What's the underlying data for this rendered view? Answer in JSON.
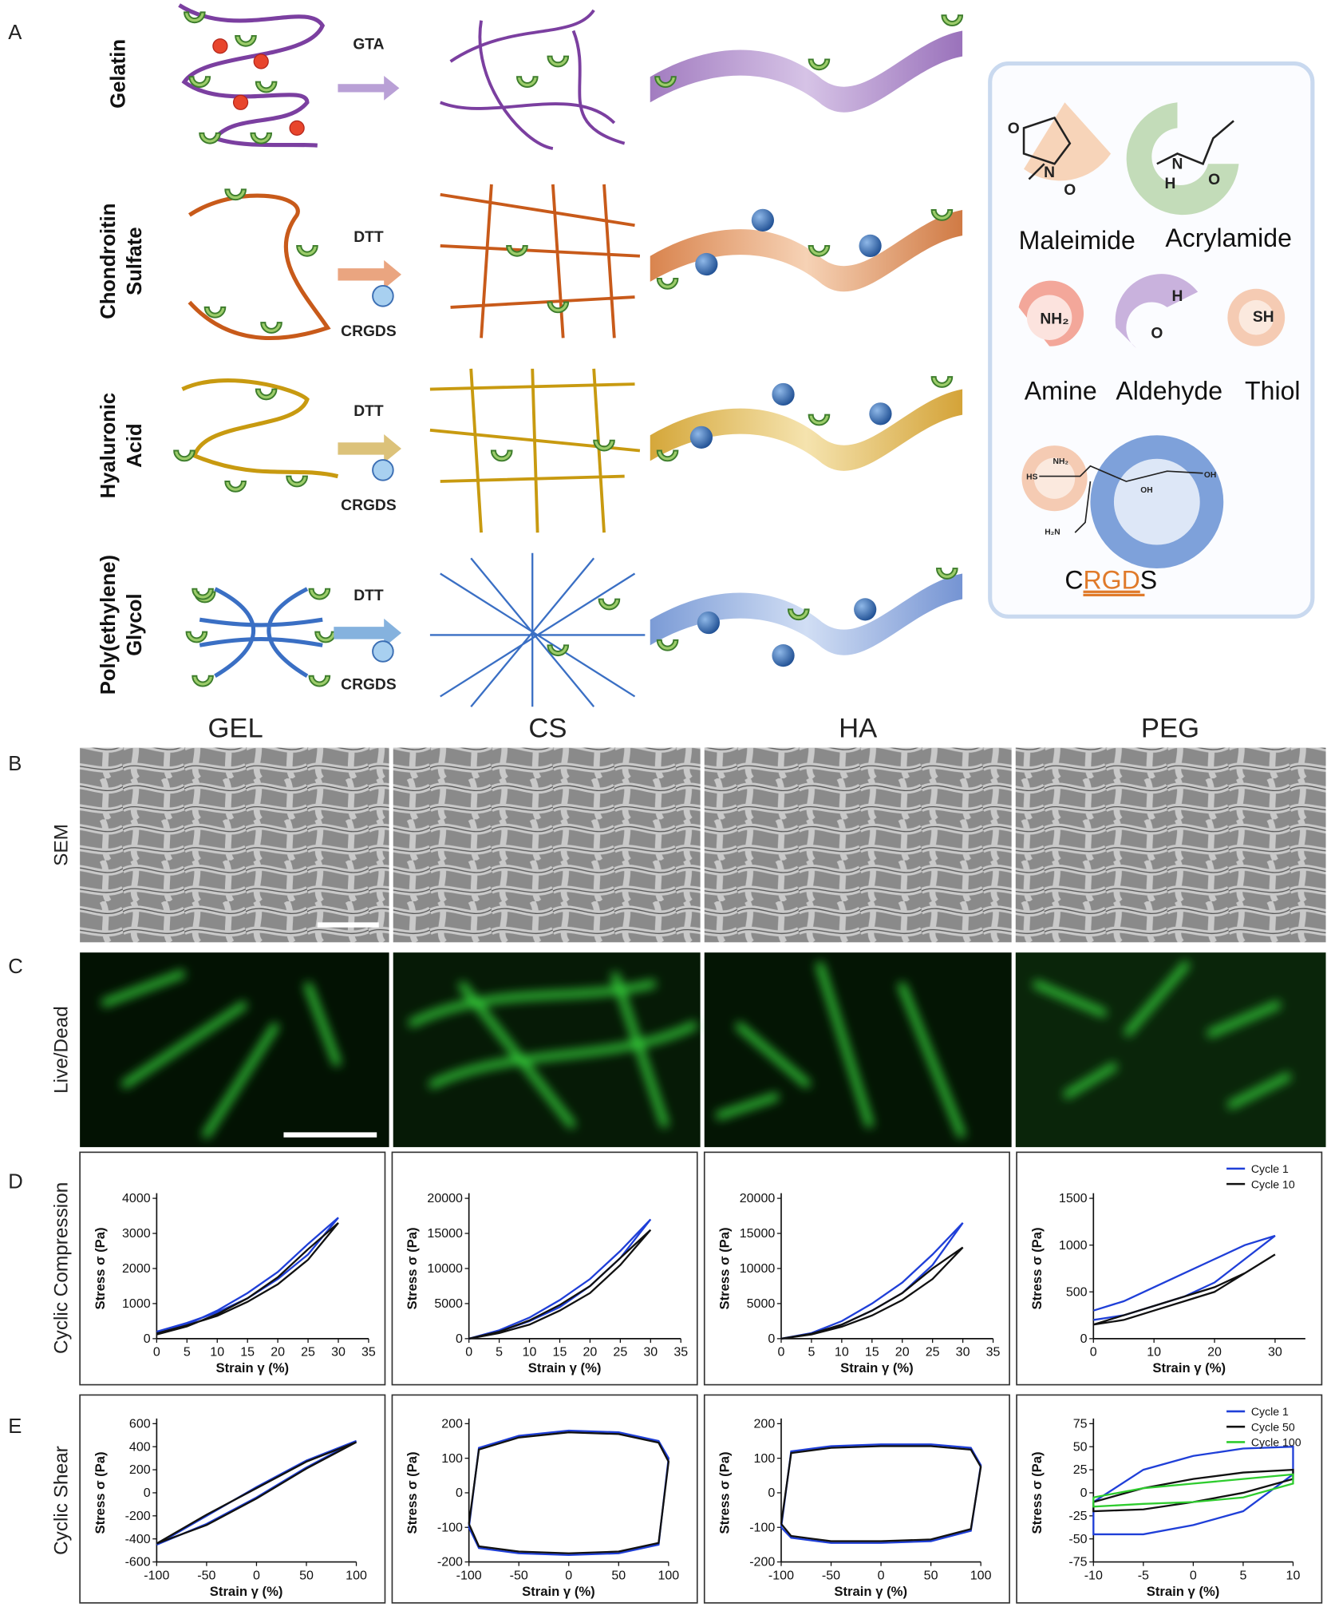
{
  "panel_labels": {
    "a": "A",
    "b": "B",
    "c": "C",
    "d": "D",
    "e": "E"
  },
  "panel_a": {
    "rows": [
      [
        "Gelatin"
      ],
      [
        "Chondroitin",
        "Sulfate"
      ],
      [
        "Hyaluronic",
        "Acid"
      ],
      [
        "Poly(ethylene)",
        "Glycol"
      ]
    ],
    "crosslinkers": [
      "GTA",
      "DTT",
      "DTT",
      "DTT"
    ],
    "peptide_labels": [
      "CRGDS",
      "CRGDS",
      "CRGDS"
    ],
    "legend": {
      "groups": [
        "Maleimide",
        "Acrylamide",
        "Amine",
        "Aldehyde",
        "Thiol"
      ],
      "maleimide_atoms": [
        "O",
        "N",
        "O"
      ],
      "acrylamide_atoms": [
        "N",
        "H",
        "O"
      ],
      "amine_atom": "NH₂",
      "aldehyde_atoms": [
        "H",
        "O"
      ],
      "thiol_atom": "SH",
      "crgds_atoms": [
        "HS",
        "NH₂",
        "OH",
        "OH",
        "H₂N"
      ],
      "peptide": {
        "prefix": "C",
        "motif": "RGD",
        "suffix": "S"
      }
    }
  },
  "columns": [
    "GEL",
    "CS",
    "HA",
    "PEG"
  ],
  "row_titles": {
    "sem": "SEM",
    "live_dead": "Live/Dead",
    "compression": "Cyclic Compression",
    "shear": "Cyclic Shear"
  },
  "chart_data": [
    {
      "type": "line",
      "xlabel": "Strain γ (%)",
      "ylabel": "Stress σ (Pa)",
      "x": [
        0,
        5,
        10,
        15,
        20,
        25,
        30,
        25,
        20,
        15,
        10,
        5,
        0
      ],
      "xlim": [
        0,
        35
      ],
      "xticks": [
        0,
        5,
        10,
        15,
        20,
        25,
        30,
        35
      ],
      "ylim": [
        0,
        4000
      ],
      "yticks": [
        0,
        1000,
        2000,
        3000,
        4000
      ],
      "series": [
        {
          "color": "#1f3fd8",
          "values": [
            200,
            450,
            750,
            1150,
            1700,
            2400,
            3450,
            2700,
            1900,
            1300,
            800,
            400,
            150
          ]
        },
        {
          "color": "#111111",
          "values": [
            150,
            380,
            650,
            1050,
            1550,
            2250,
            3300,
            2550,
            1750,
            1150,
            700,
            350,
            120
          ]
        }
      ]
    },
    {
      "type": "line",
      "xlabel": "Strain γ (%)",
      "ylabel": "Stress σ (Pa)",
      "x": [
        0,
        5,
        10,
        15,
        20,
        25,
        30,
        25,
        20,
        15,
        10,
        5,
        0
      ],
      "xlim": [
        0,
        35
      ],
      "xticks": [
        0,
        5,
        10,
        15,
        20,
        25,
        30,
        35
      ],
      "ylim": [
        0,
        20000
      ],
      "yticks": [
        0,
        5000,
        10000,
        15000,
        20000
      ],
      "series": [
        {
          "color": "#1f3fd8",
          "values": [
            0,
            1000,
            2500,
            4500,
            7500,
            11500,
            17000,
            12500,
            8500,
            5500,
            3000,
            1200,
            0
          ]
        },
        {
          "color": "#111111",
          "values": [
            0,
            800,
            2000,
            4000,
            6500,
            10500,
            15500,
            11500,
            7500,
            4800,
            2600,
            1000,
            0
          ]
        }
      ]
    },
    {
      "type": "line",
      "xlabel": "Strain γ (%)",
      "ylabel": "Stress σ (Pa)",
      "x": [
        0,
        5,
        10,
        15,
        20,
        25,
        30,
        25,
        20,
        15,
        10,
        5,
        0
      ],
      "xlim": [
        0,
        35
      ],
      "xticks": [
        0,
        5,
        10,
        15,
        20,
        25,
        30,
        35
      ],
      "ylim": [
        0,
        20000
      ],
      "yticks": [
        0,
        5000,
        10000,
        15000,
        20000
      ],
      "series": [
        {
          "color": "#1f3fd8",
          "values": [
            0,
            700,
            2000,
            4000,
            6500,
            10500,
            16500,
            12000,
            8000,
            5000,
            2500,
            800,
            0
          ]
        },
        {
          "color": "#111111",
          "values": [
            0,
            600,
            1700,
            3300,
            5500,
            8500,
            13000,
            10000,
            6500,
            4000,
            2000,
            700,
            0
          ]
        }
      ]
    },
    {
      "type": "line",
      "xlabel": "Strain γ (%)",
      "ylabel": "Stress σ (Pa)",
      "x": [
        0,
        5,
        10,
        15,
        20,
        25,
        30,
        25,
        20,
        15,
        10,
        5,
        0
      ],
      "xlim": [
        0,
        35
      ],
      "xticks": [
        0,
        10,
        20,
        30
      ],
      "ylim": [
        0,
        1500
      ],
      "yticks": [
        0,
        500,
        1000,
        1500
      ],
      "series": [
        {
          "name": "Cycle 1",
          "color": "#1f3fd8",
          "values": [
            300,
            400,
            550,
            700,
            850,
            1000,
            1100,
            850,
            600,
            450,
            350,
            250,
            200
          ]
        },
        {
          "name": "Cycle 10",
          "color": "#111111",
          "values": [
            150,
            250,
            350,
            450,
            550,
            700,
            900,
            700,
            500,
            400,
            300,
            200,
            150
          ]
        }
      ]
    },
    {
      "type": "line",
      "xlabel": "Strain γ (%)",
      "ylabel": "Stress σ (Pa)",
      "x": [
        -100,
        -50,
        0,
        50,
        100,
        50,
        0,
        -50,
        -100
      ],
      "xlim": [
        -100,
        100
      ],
      "xticks": [
        -100,
        -50,
        0,
        50,
        100
      ],
      "ylim": [
        -600,
        600
      ],
      "yticks": [
        -600,
        -400,
        -200,
        0,
        200,
        400,
        600
      ],
      "series": [
        {
          "color": "#1f3fd8",
          "values": [
            -450,
            -200,
            50,
            280,
            450,
            220,
            -40,
            -270,
            -450
          ]
        },
        {
          "color": "#111111",
          "values": [
            -440,
            -190,
            40,
            270,
            440,
            210,
            -50,
            -280,
            -440
          ]
        }
      ]
    },
    {
      "type": "line",
      "xlabel": "Strain γ (%)",
      "ylabel": "Stress σ (Pa)",
      "x": [
        -100,
        -90,
        -50,
        0,
        50,
        90,
        100,
        90,
        50,
        0,
        -50,
        -90,
        -100
      ],
      "xlim": [
        -100,
        100
      ],
      "xticks": [
        -100,
        -50,
        0,
        50,
        100
      ],
      "ylim": [
        -200,
        200
      ],
      "yticks": [
        -200,
        -100,
        0,
        100,
        200
      ],
      "series": [
        {
          "color": "#1f3fd8",
          "values": [
            -100,
            130,
            165,
            180,
            175,
            150,
            100,
            -150,
            -175,
            -180,
            -175,
            -160,
            -100
          ]
        },
        {
          "color": "#111111",
          "values": [
            -90,
            125,
            160,
            175,
            170,
            145,
            90,
            -145,
            -170,
            -175,
            -170,
            -155,
            -90
          ]
        }
      ]
    },
    {
      "type": "line",
      "xlabel": "Strain γ (%)",
      "ylabel": "Stress σ (Pa)",
      "x": [
        -100,
        -90,
        -50,
        0,
        50,
        90,
        100,
        90,
        50,
        0,
        -50,
        -90,
        -100
      ],
      "xlim": [
        -100,
        100
      ],
      "xticks": [
        -100,
        -50,
        0,
        50,
        100
      ],
      "ylim": [
        -200,
        200
      ],
      "yticks": [
        -200,
        -100,
        0,
        100,
        200
      ],
      "series": [
        {
          "color": "#1f3fd8",
          "values": [
            -100,
            120,
            135,
            140,
            140,
            130,
            80,
            -110,
            -140,
            -145,
            -145,
            -130,
            -100
          ]
        },
        {
          "color": "#111111",
          "values": [
            -90,
            115,
            130,
            135,
            135,
            125,
            75,
            -105,
            -135,
            -140,
            -140,
            -125,
            -90
          ]
        }
      ]
    },
    {
      "type": "line",
      "xlabel": "Strain γ (%)",
      "ylabel": "Stress σ (Pa)",
      "x": [
        -10,
        -5,
        0,
        5,
        10,
        10,
        5,
        0,
        -5,
        -10,
        -10
      ],
      "xlim": [
        -10,
        10
      ],
      "xticks": [
        -10,
        -5,
        0,
        5,
        10
      ],
      "ylim": [
        -75,
        75
      ],
      "yticks": [
        -75,
        -50,
        -25,
        0,
        25,
        50,
        75
      ],
      "series": [
        {
          "name": "Cycle 1",
          "color": "#1f3fd8",
          "values": [
            -10,
            25,
            40,
            48,
            50,
            20,
            -20,
            -35,
            -45,
            -45,
            -10
          ]
        },
        {
          "name": "Cycle 50",
          "color": "#111111",
          "values": [
            -10,
            5,
            15,
            22,
            25,
            15,
            0,
            -10,
            -18,
            -20,
            -10
          ]
        },
        {
          "name": "Cycle 100",
          "color": "#2ecc2e",
          "values": [
            -5,
            5,
            10,
            15,
            20,
            10,
            -5,
            -10,
            -12,
            -15,
            -5
          ]
        }
      ]
    }
  ]
}
